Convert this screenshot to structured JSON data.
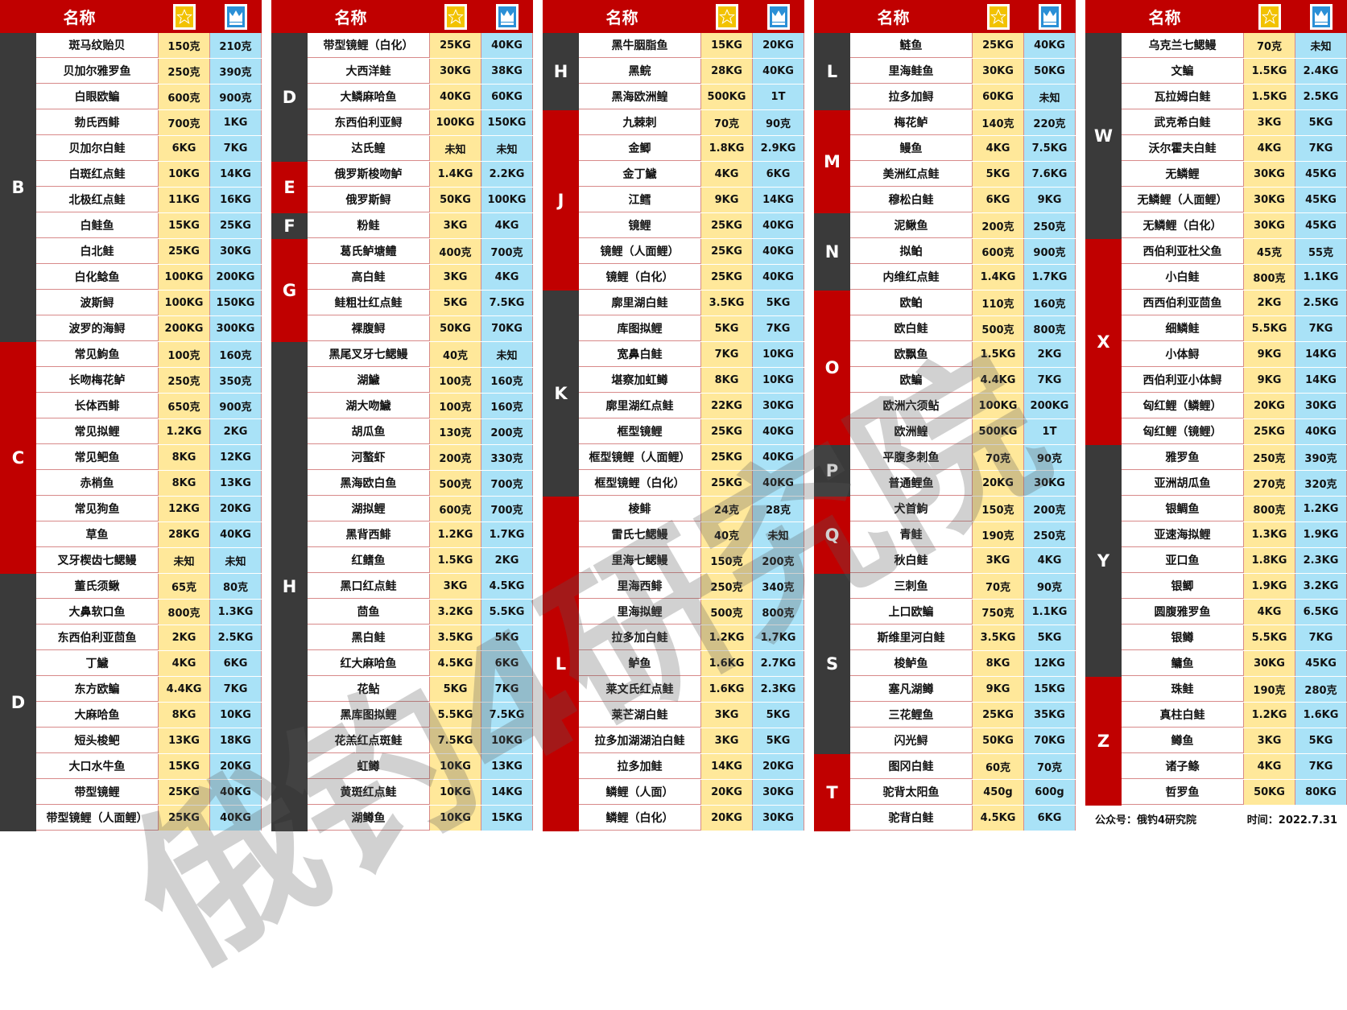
{
  "header": {
    "name": "名称",
    "col_a_icon": "gold-star-badge-icon",
    "col_b_icon": "blue-crown-badge-icon"
  },
  "colors": {
    "header_bg": "#c00000",
    "group_dark": "#3a3a3a",
    "group_red": "#c00000",
    "col_a_bg": "#ffe89a",
    "col_b_bg": "#a9e2f7"
  },
  "footer": {
    "account": "公众号：俄钓4研究院",
    "date": "时间：2022.7.31"
  },
  "watermark": "俄钓4研究院",
  "columns": [
    {
      "groups": [
        {
          "letter": "B",
          "color": "dark",
          "rows": [
            [
              "斑马纹贻贝",
              "150克",
              "210克"
            ],
            [
              "贝加尔雅罗鱼",
              "250克",
              "390克"
            ],
            [
              "白眼欧鳊",
              "600克",
              "900克"
            ],
            [
              "勃氏西鲱",
              "700克",
              "1KG"
            ],
            [
              "贝加尔白鲑",
              "6KG",
              "7KG"
            ],
            [
              "白斑红点鲑",
              "10KG",
              "14KG"
            ],
            [
              "北极红点鲑",
              "11KG",
              "16KG"
            ],
            [
              "白鲑鱼",
              "15KG",
              "25KG"
            ],
            [
              "白北鲑",
              "25KG",
              "30KG"
            ],
            [
              "白化鲶鱼",
              "100KG",
              "200KG"
            ],
            [
              "波斯鲟",
              "100KG",
              "150KG"
            ],
            [
              "波罗的海鲟",
              "200KG",
              "300KG"
            ]
          ]
        },
        {
          "letter": "C",
          "color": "red",
          "rows": [
            [
              "常见鮈鱼",
              "100克",
              "160克"
            ],
            [
              "长吻梅花鲈",
              "250克",
              "350克"
            ],
            [
              "长体西鲱",
              "650克",
              "900克"
            ],
            [
              "常见拟鲤",
              "1.2KG",
              "2KG"
            ],
            [
              "常见鲃鱼",
              "8KG",
              "12KG"
            ],
            [
              "赤梢鱼",
              "8KG",
              "13KG"
            ],
            [
              "常见狗鱼",
              "12KG",
              "20KG"
            ],
            [
              "草鱼",
              "28KG",
              "40KG"
            ],
            [
              "叉牙楔齿七鳃鳗",
              "未知",
              "未知"
            ]
          ]
        },
        {
          "letter": "D",
          "color": "dark",
          "rows": [
            [
              "董氏须鳅",
              "65克",
              "80克"
            ],
            [
              "大鼻软口鱼",
              "800克",
              "1.3KG"
            ],
            [
              "东西伯利亚茴鱼",
              "2KG",
              "2.5KG"
            ],
            [
              "丁鱥",
              "4KG",
              "6KG"
            ],
            [
              "东方欧鳊",
              "4.4KG",
              "7KG"
            ],
            [
              "大麻哈鱼",
              "8KG",
              "10KG"
            ],
            [
              "短头梭鲃",
              "13KG",
              "18KG"
            ],
            [
              "大口水牛鱼",
              "15KG",
              "20KG"
            ],
            [
              "带型镜鲤",
              "25KG",
              "40KG"
            ],
            [
              "带型镜鲤（人面鲤）",
              "25KG",
              "40KG"
            ]
          ]
        }
      ]
    },
    {
      "groups": [
        {
          "letter": "D",
          "color": "dark",
          "rows": [
            [
              "带型镜鲤（白化）",
              "25KG",
              "40KG"
            ],
            [
              "大西洋鲑",
              "30KG",
              "38KG"
            ],
            [
              "大鳞麻哈鱼",
              "40KG",
              "60KG"
            ],
            [
              "东西伯利亚鲟",
              "100KG",
              "150KG"
            ],
            [
              "达氏鳇",
              "未知",
              "未知"
            ]
          ]
        },
        {
          "letter": "E",
          "color": "red",
          "rows": [
            [
              "俄罗斯梭吻鲈",
              "1.4KG",
              "2.2KG"
            ],
            [
              "俄罗斯鲟",
              "50KG",
              "100KG"
            ]
          ]
        },
        {
          "letter": "F",
          "color": "dark",
          "rows": [
            [
              "粉鲑",
              "3KG",
              "4KG"
            ]
          ]
        },
        {
          "letter": "G",
          "color": "red",
          "rows": [
            [
              "葛氏鲈塘鳢",
              "400克",
              "700克"
            ],
            [
              "高白鲑",
              "3KG",
              "4KG"
            ],
            [
              "鲑粗壮红点鲑",
              "5KG",
              "7.5KG"
            ],
            [
              "裸腹鲟",
              "50KG",
              "70KG"
            ]
          ]
        },
        {
          "letter": "H",
          "color": "dark",
          "rows": [
            [
              "黑尾叉牙七鳃鳗",
              "40克",
              "未知"
            ],
            [
              "湖鱥",
              "100克",
              "160克"
            ],
            [
              "湖大吻鱥",
              "100克",
              "160克"
            ],
            [
              "胡瓜鱼",
              "130克",
              "200克"
            ],
            [
              "河螯虾",
              "200克",
              "330克"
            ],
            [
              "黑海欧白鱼",
              "500克",
              "700克"
            ],
            [
              "湖拟鲤",
              "600克",
              "700克"
            ],
            [
              "黑背西鲱",
              "1.2KG",
              "1.7KG"
            ],
            [
              "红鳍鱼",
              "1.5KG",
              "2KG"
            ],
            [
              "黑口红点鲑",
              "3KG",
              "4.5KG"
            ],
            [
              "茴鱼",
              "3.2KG",
              "5.5KG"
            ],
            [
              "黑白鲑",
              "3.5KG",
              "5KG"
            ],
            [
              "红大麻哈鱼",
              "4.5KG",
              "6KG"
            ],
            [
              "花鲇",
              "5KG",
              "7KG"
            ],
            [
              "黑库图拟鲤",
              "5.5KG",
              "7.5KG"
            ],
            [
              "花羔红点斑鲑",
              "7.5KG",
              "10KG"
            ],
            [
              "虹鳟",
              "10KG",
              "13KG"
            ],
            [
              "黄斑红点鲑",
              "10KG",
              "14KG"
            ],
            [
              "湖鳟鱼",
              "10KG",
              "15KG"
            ]
          ]
        }
      ]
    },
    {
      "groups": [
        {
          "letter": "H",
          "color": "dark",
          "rows": [
            [
              "黑牛胭脂鱼",
              "15KG",
              "20KG"
            ],
            [
              "黑鲩",
              "28KG",
              "40KG"
            ],
            [
              "黑海欧洲鳇",
              "500KG",
              "1T"
            ]
          ]
        },
        {
          "letter": "J",
          "color": "red",
          "rows": [
            [
              "九棘刺",
              "70克",
              "90克"
            ],
            [
              "金鲫",
              "1.8KG",
              "2.9KG"
            ],
            [
              "金丁鱥",
              "4KG",
              "6KG"
            ],
            [
              "江鳕",
              "9KG",
              "14KG"
            ],
            [
              "镜鲤",
              "25KG",
              "40KG"
            ],
            [
              "镜鲤（人面鲤）",
              "25KG",
              "40KG"
            ],
            [
              "镜鲤（白化）",
              "25KG",
              "40KG"
            ]
          ]
        },
        {
          "letter": "K",
          "color": "dark",
          "rows": [
            [
              "廓里湖白鲑",
              "3.5KG",
              "5KG"
            ],
            [
              "库图拟鲤",
              "5KG",
              "7KG"
            ],
            [
              "宽鼻白鲑",
              "7KG",
              "10KG"
            ],
            [
              "堪察加虹鳟",
              "8KG",
              "10KG"
            ],
            [
              "廓里湖红点鲑",
              "22KG",
              "30KG"
            ],
            [
              "框型镜鲤",
              "25KG",
              "40KG"
            ],
            [
              "框型镜鲤（人面鲤）",
              "25KG",
              "40KG"
            ],
            [
              "框型镜鲤（白化）",
              "25KG",
              "40KG"
            ]
          ]
        },
        {
          "letter": "L",
          "color": "red",
          "rows": [
            [
              "棱鲱",
              "24克",
              "28克"
            ],
            [
              "雷氏七鳃鳗",
              "40克",
              "未知"
            ],
            [
              "里海七鳃鳗",
              "150克",
              "200克"
            ],
            [
              "里海西鲱",
              "250克",
              "340克"
            ],
            [
              "里海拟鲤",
              "500克",
              "800克"
            ],
            [
              "拉多加白鲑",
              "1.2KG",
              "1.7KG"
            ],
            [
              "鲈鱼",
              "1.6KG",
              "2.7KG"
            ],
            [
              "莱文氏红点鲑",
              "1.6KG",
              "2.3KG"
            ],
            [
              "莱芒湖白鲑",
              "3KG",
              "5KG"
            ],
            [
              "拉多加湖湖泊白鲑",
              "3KG",
              "5KG"
            ],
            [
              "拉多加鲑",
              "14KG",
              "20KG"
            ],
            [
              "鳞鲤（人面）",
              "20KG",
              "30KG"
            ],
            [
              "鳞鲤（白化）",
              "20KG",
              "30KG"
            ]
          ]
        }
      ]
    },
    {
      "groups": [
        {
          "letter": "L",
          "color": "dark",
          "rows": [
            [
              "鲢鱼",
              "25KG",
              "40KG"
            ],
            [
              "里海鲑鱼",
              "30KG",
              "50KG"
            ],
            [
              "拉多加鲟",
              "60KG",
              "未知"
            ]
          ]
        },
        {
          "letter": "M",
          "color": "red",
          "rows": [
            [
              "梅花鲈",
              "140克",
              "220克"
            ],
            [
              "鳗鱼",
              "4KG",
              "7.5KG"
            ],
            [
              "美洲红点鲑",
              "5KG",
              "7.6KG"
            ],
            [
              "穆松白鲑",
              "6KG",
              "9KG"
            ]
          ]
        },
        {
          "letter": "N",
          "color": "dark",
          "rows": [
            [
              "泥鳅鱼",
              "200克",
              "250克"
            ],
            [
              "拟鲌",
              "600克",
              "900克"
            ],
            [
              "内维红点鲑",
              "1.4KG",
              "1.7KG"
            ]
          ]
        },
        {
          "letter": "O",
          "color": "red",
          "rows": [
            [
              "欧鲌",
              "110克",
              "160克"
            ],
            [
              "欧白鲑",
              "500克",
              "800克"
            ],
            [
              "欧飘鱼",
              "1.5KG",
              "2KG"
            ],
            [
              "欧鳊",
              "4.4KG",
              "7KG"
            ],
            [
              "欧洲六须鲇",
              "100KG",
              "200KG"
            ],
            [
              "欧洲鳇",
              "500KG",
              "1T"
            ]
          ]
        },
        {
          "letter": "P",
          "color": "dark",
          "rows": [
            [
              "平腹多刺鱼",
              "70克",
              "90克"
            ],
            [
              "普通鲤鱼",
              "20KG",
              "30KG"
            ]
          ]
        },
        {
          "letter": "Q",
          "color": "red",
          "rows": [
            [
              "犬首鮈",
              "150克",
              "200克"
            ],
            [
              "青鲑",
              "190克",
              "250克"
            ],
            [
              "秋白鲑",
              "3KG",
              "4KG"
            ]
          ]
        },
        {
          "letter": "S",
          "color": "dark",
          "rows": [
            [
              "三刺鱼",
              "70克",
              "90克"
            ],
            [
              "上口欧鳊",
              "750克",
              "1.1KG"
            ],
            [
              "斯维里河白鲑",
              "3.5KG",
              "5KG"
            ],
            [
              "梭鲈鱼",
              "8KG",
              "12KG"
            ],
            [
              "塞凡湖鳟",
              "9KG",
              "15KG"
            ],
            [
              "三花鲤鱼",
              "25KG",
              "35KG"
            ],
            [
              "闪光鲟",
              "50KG",
              "70KG"
            ]
          ]
        },
        {
          "letter": "T",
          "color": "red",
          "rows": [
            [
              "图冈白鲑",
              "60克",
              "70克"
            ],
            [
              "驼背太阳鱼",
              "450g",
              "600g"
            ],
            [
              "驼背白鲑",
              "4.5KG",
              "6KG"
            ]
          ]
        }
      ]
    },
    {
      "groups": [
        {
          "letter": "W",
          "color": "dark",
          "rows": [
            [
              "乌克兰七鳃鳗",
              "70克",
              "未知"
            ],
            [
              "文鳊",
              "1.5KG",
              "2.4KG"
            ],
            [
              "瓦拉姆白鲑",
              "1.5KG",
              "2.5KG"
            ],
            [
              "武克希白鲑",
              "3KG",
              "5KG"
            ],
            [
              "沃尔霍夫白鲑",
              "4KG",
              "7KG"
            ],
            [
              "无鳞鲤",
              "30KG",
              "45KG"
            ],
            [
              "无鳞鲤（人面鲤）",
              "30KG",
              "45KG"
            ],
            [
              "无鳞鲤（白化）",
              "30KG",
              "45KG"
            ]
          ]
        },
        {
          "letter": "X",
          "color": "red",
          "rows": [
            [
              "西伯利亚杜父鱼",
              "45克",
              "55克"
            ],
            [
              "小白鲑",
              "800克",
              "1.1KG"
            ],
            [
              "西西伯利亚茴鱼",
              "2KG",
              "2.5KG"
            ],
            [
              "细鳞鲑",
              "5.5KG",
              "7KG"
            ],
            [
              "小体鲟",
              "9KG",
              "14KG"
            ],
            [
              "西伯利亚小体鲟",
              "9KG",
              "14KG"
            ],
            [
              "匈红鲤（鳞鲤）",
              "20KG",
              "30KG"
            ],
            [
              "匈红鲤（镜鲤）",
              "25KG",
              "40KG"
            ]
          ]
        },
        {
          "letter": "Y",
          "color": "dark",
          "rows": [
            [
              "雅罗鱼",
              "250克",
              "390克"
            ],
            [
              "亚洲胡瓜鱼",
              "270克",
              "320克"
            ],
            [
              "银鲷鱼",
              "800克",
              "1.2KG"
            ],
            [
              "亚速海拟鲤",
              "1.3KG",
              "1.9KG"
            ],
            [
              "亚口鱼",
              "1.8KG",
              "2.3KG"
            ],
            [
              "银鲫",
              "1.9KG",
              "3.2KG"
            ],
            [
              "圆腹雅罗鱼",
              "4KG",
              "6.5KG"
            ],
            [
              "银鳟",
              "5.5KG",
              "7KG"
            ],
            [
              "鳙鱼",
              "30KG",
              "45KG"
            ]
          ]
        },
        {
          "letter": "Z",
          "color": "red",
          "rows": [
            [
              "珠鲑",
              "190克",
              "280克"
            ],
            [
              "真柱白鲑",
              "1.2KG",
              "1.6KG"
            ],
            [
              "鳟鱼",
              "3KG",
              "5KG"
            ],
            [
              "诸子鲦",
              "4KG",
              "7KG"
            ],
            [
              "哲罗鱼",
              "50KG",
              "80KG"
            ]
          ]
        }
      ]
    }
  ]
}
